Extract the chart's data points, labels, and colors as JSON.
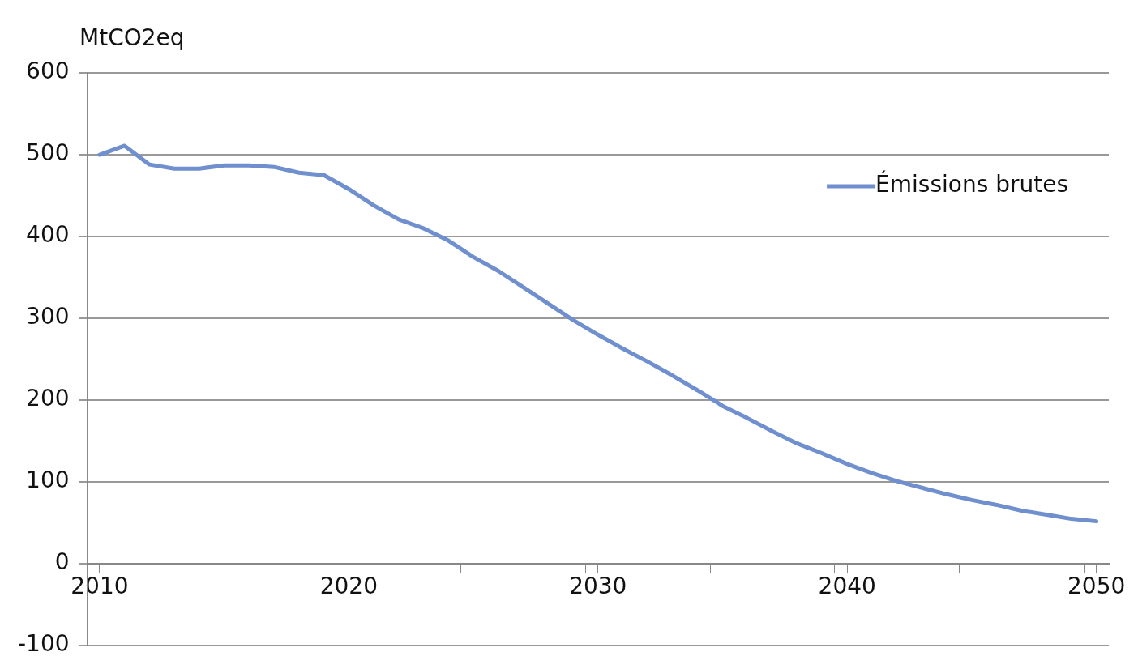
{
  "chart_data": {
    "type": "line",
    "ylabel": "MtCO2eq",
    "x": [
      2010,
      2011,
      2012,
      2013,
      2014,
      2015,
      2016,
      2017,
      2018,
      2019,
      2020,
      2021,
      2022,
      2023,
      2024,
      2025,
      2026,
      2027,
      2028,
      2029,
      2030,
      2031,
      2032,
      2033,
      2034,
      2035,
      2036,
      2037,
      2038,
      2039,
      2040,
      2041,
      2042,
      2043,
      2044,
      2045,
      2046,
      2047,
      2048,
      2049,
      2050
    ],
    "series": [
      {
        "name": "Émissions brutes",
        "color": "#6f8fcf",
        "values": [
          500,
          511,
          488,
          483,
          483,
          487,
          487,
          485,
          478,
          475,
          458,
          438,
          421,
          410,
          395,
          375,
          358,
          338,
          318,
          298,
          280,
          263,
          247,
          230,
          212,
          193,
          178,
          162,
          147,
          135,
          122,
          111,
          101,
          93,
          85,
          78,
          72,
          65,
          60,
          55,
          52
        ]
      }
    ],
    "xlim": [
      2009.5,
      2050.5
    ],
    "xticks": [
      {
        "value": 2009.5,
        "label": null
      },
      2010,
      {
        "value": 2014.5,
        "label": null
      },
      {
        "value": 2019.5,
        "label": null
      },
      2020,
      {
        "value": 2024.5,
        "label": null
      },
      {
        "value": 2029.5,
        "label": null
      },
      2030,
      {
        "value": 2034.5,
        "label": null
      },
      {
        "value": 2039.5,
        "label": null
      },
      2040,
      {
        "value": 2044.5,
        "label": null
      },
      {
        "value": 2049.5,
        "label": null
      },
      2050
    ],
    "ylim": [
      -100,
      600
    ],
    "yticks": [
      -100,
      0,
      100,
      200,
      300,
      400,
      500,
      600
    ],
    "grid": "y",
    "legend": "top right",
    "marker": "none",
    "line_style": "solid"
  }
}
